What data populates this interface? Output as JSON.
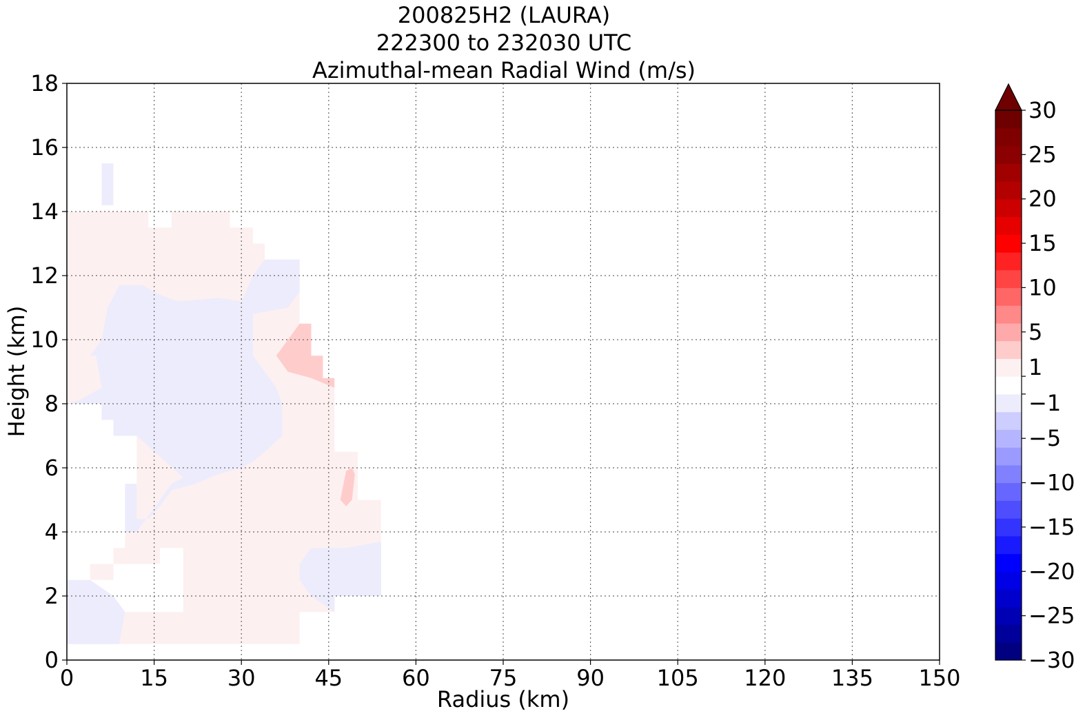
{
  "chart_data": {
    "type": "heatmap",
    "title_lines": [
      "200825H2 (LAURA)",
      "222300 to 232030 UTC",
      "Azimuthal-mean Radial Wind (m/s)"
    ],
    "xlabel": "Radius (km)",
    "ylabel": "Height (km)",
    "xlim": [
      0,
      150
    ],
    "ylim": [
      0,
      18
    ],
    "x_ticks": [
      "0",
      "15",
      "30",
      "45",
      "60",
      "75",
      "90",
      "105",
      "120",
      "135",
      "150"
    ],
    "y_ticks": [
      "0",
      "2",
      "4",
      "6",
      "8",
      "10",
      "12",
      "14",
      "16",
      "18"
    ],
    "grid": true,
    "colorbar": {
      "range": [
        -30,
        30
      ],
      "ticks": [
        "30",
        "25",
        "20",
        "15",
        "10",
        "5",
        "1",
        "−1",
        "−5",
        "−10",
        "−15",
        "−20",
        "−25",
        "−30"
      ],
      "extend": "max",
      "levels": [
        -30,
        -28,
        -26,
        -24,
        -22,
        -20,
        -18,
        -16,
        -14,
        -12,
        -10,
        -8,
        -6,
        -4,
        -2,
        -1,
        1,
        2,
        4,
        6,
        8,
        10,
        12,
        14,
        16,
        18,
        20,
        22,
        24,
        26,
        28,
        30
      ],
      "colors": [
        "#000080",
        "#00009a",
        "#0000b4",
        "#0000cd",
        "#0000e6",
        "#0000ff",
        "#1a1aff",
        "#3434ff",
        "#4e4eff",
        "#6767ff",
        "#8181ff",
        "#9b9bff",
        "#b5b5ff",
        "#cdcdff",
        "#ececfc",
        "#ffffff",
        "#fdf0f0",
        "#ffcccc",
        "#ffaaaa",
        "#ff8888",
        "#ff6666",
        "#ff4444",
        "#ff2222",
        "#ff0000",
        "#e60000",
        "#cc0000",
        "#b30000",
        "#a00000",
        "#8b0000",
        "#800000",
        "#6e0000"
      ],
      "extend_color": "#6e0000"
    },
    "legend_colors": {
      "light_blue": "#ececfc",
      "light_pink": "#fdf0f0",
      "pink": "#ffcccc"
    },
    "regions": [
      {
        "level": "weak-outflow",
        "color": "#fdf0f0",
        "polygon": [
          [
            0,
            14
          ],
          [
            14,
            14
          ],
          [
            14,
            13.5
          ],
          [
            18,
            13.5
          ],
          [
            18,
            14
          ],
          [
            28,
            14
          ],
          [
            28,
            13.5
          ],
          [
            32,
            13.5
          ],
          [
            32,
            13.0
          ],
          [
            34,
            13.0
          ],
          [
            34,
            12.5
          ],
          [
            40,
            12.5
          ],
          [
            40,
            9.0
          ],
          [
            46,
            8.5
          ],
          [
            46,
            6.5
          ],
          [
            50,
            6.5
          ],
          [
            50,
            5.0
          ],
          [
            54,
            5.0
          ],
          [
            54,
            2.0
          ],
          [
            46,
            2.0
          ],
          [
            46,
            1.5
          ],
          [
            40,
            1.5
          ],
          [
            40,
            0.5
          ],
          [
            9,
            0.5
          ],
          [
            10,
            1.5
          ],
          [
            20,
            1.5
          ],
          [
            20,
            3.5
          ],
          [
            16,
            3.5
          ],
          [
            16,
            3.0
          ],
          [
            8,
            3.0
          ],
          [
            8,
            2.5
          ],
          [
            4,
            2.5
          ],
          [
            4,
            3.0
          ],
          [
            8,
            3.0
          ],
          [
            8,
            3.5
          ],
          [
            10,
            3.5
          ],
          [
            10,
            4.0
          ],
          [
            10,
            5.5
          ],
          [
            12,
            5.5
          ],
          [
            12,
            7.0
          ],
          [
            8,
            7.0
          ],
          [
            8,
            7.5
          ],
          [
            6,
            7.5
          ],
          [
            6,
            8.0
          ],
          [
            0,
            8.0
          ]
        ]
      },
      {
        "level": "weak-inflow",
        "color": "#ececfc",
        "polygon": [
          [
            0,
            9.5
          ],
          [
            4,
            9.5
          ],
          [
            6,
            10.0
          ],
          [
            7,
            11.0
          ],
          [
            9,
            11.7
          ],
          [
            13,
            11.7
          ],
          [
            16,
            11.4
          ],
          [
            19,
            11.2
          ],
          [
            26,
            11.3
          ],
          [
            30,
            11.2
          ],
          [
            32,
            12.0
          ],
          [
            34,
            12.5
          ],
          [
            40,
            12.5
          ],
          [
            40,
            11.5
          ],
          [
            38,
            11.0
          ],
          [
            32,
            10.8
          ],
          [
            32,
            9.5
          ],
          [
            34,
            9.0
          ],
          [
            36,
            8.5
          ],
          [
            37,
            8.0
          ],
          [
            37,
            7.0
          ],
          [
            34,
            6.5
          ],
          [
            32,
            6.2
          ],
          [
            30,
            6.0
          ],
          [
            26,
            5.8
          ],
          [
            22,
            5.5
          ],
          [
            18,
            5.3
          ],
          [
            16,
            4.8
          ],
          [
            14,
            4.4
          ],
          [
            12,
            4.4
          ],
          [
            12,
            5.5
          ],
          [
            10,
            5.5
          ],
          [
            10,
            4.0
          ],
          [
            12,
            4.0
          ],
          [
            14,
            4.5
          ],
          [
            16,
            5.0
          ],
          [
            18,
            5.5
          ],
          [
            20,
            5.7
          ],
          [
            12,
            7.0
          ],
          [
            8,
            7.0
          ],
          [
            8,
            7.5
          ],
          [
            6,
            7.5
          ],
          [
            6,
            8.0
          ],
          [
            0,
            8.0
          ],
          [
            0,
            8.0
          ],
          [
            2,
            8.1
          ],
          [
            6,
            8.5
          ],
          [
            5,
            9.5
          ],
          [
            0,
            9.5
          ]
        ]
      },
      {
        "level": "moderate-outflow",
        "color": "#ffcccc",
        "polygon": [
          [
            36,
            9.5
          ],
          [
            40,
            10.5
          ],
          [
            42,
            10.5
          ],
          [
            42,
            9.5
          ],
          [
            44,
            9.5
          ],
          [
            44,
            8.8
          ],
          [
            46,
            8.8
          ],
          [
            46,
            8.5
          ],
          [
            42,
            8.8
          ],
          [
            38,
            9.0
          ]
        ]
      },
      {
        "level": "moderate-outflow",
        "color": "#ffcccc",
        "polygon": [
          [
            47,
            5.0
          ],
          [
            48,
            5.9
          ],
          [
            49,
            6.0
          ],
          [
            49.5,
            5.8
          ],
          [
            49,
            5.0
          ],
          [
            48,
            4.8
          ]
        ]
      },
      {
        "level": "weak-inflow",
        "color": "#ececfc",
        "polygon": [
          [
            6,
            14.2
          ],
          [
            8,
            14.2
          ],
          [
            8,
            15.5
          ],
          [
            6,
            15.5
          ]
        ]
      },
      {
        "level": "weak-inflow",
        "color": "#ececfc",
        "polygon": [
          [
            0,
            0.5
          ],
          [
            9,
            0.5
          ],
          [
            10,
            1.5
          ],
          [
            8,
            2.0
          ],
          [
            4,
            2.5
          ],
          [
            0,
            2.5
          ]
        ]
      },
      {
        "level": "weak-inflow",
        "color": "#ececfc",
        "polygon": [
          [
            40,
            3.0
          ],
          [
            42,
            3.5
          ],
          [
            46,
            3.5
          ],
          [
            48,
            3.5
          ],
          [
            54,
            3.7
          ],
          [
            54,
            2.0
          ],
          [
            46,
            2.0
          ],
          [
            46,
            1.5
          ],
          [
            42,
            2.0
          ],
          [
            40,
            2.5
          ]
        ]
      }
    ]
  }
}
